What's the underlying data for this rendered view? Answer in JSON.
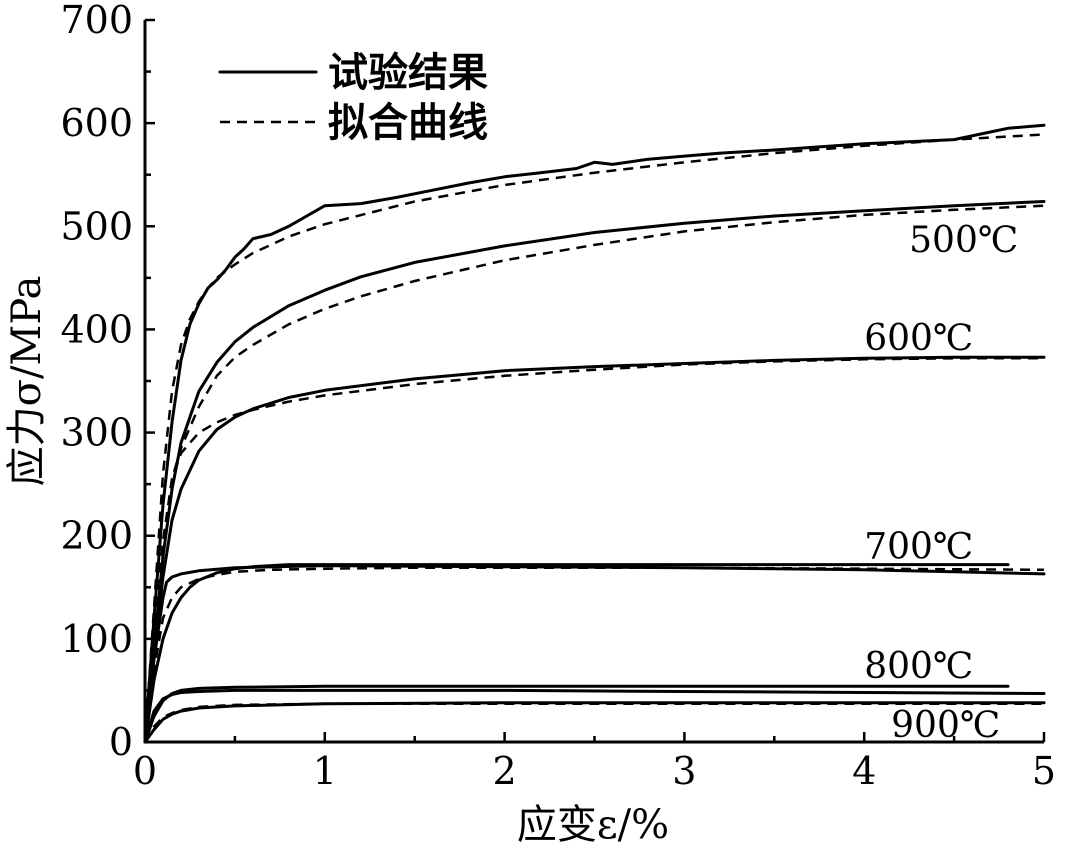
{
  "chart_data": {
    "type": "line",
    "xlabel": "应变ε/%",
    "ylabel": "应力σ/MPa",
    "xlim": [
      0,
      5
    ],
    "ylim": [
      0,
      700
    ],
    "xticks": [
      0,
      1,
      2,
      3,
      4,
      5
    ],
    "yticks": [
      0,
      100,
      200,
      300,
      400,
      500,
      600,
      700
    ],
    "grid": false,
    "legend_position": "top-left",
    "legend": [
      {
        "label": "试验结果",
        "style": "solid"
      },
      {
        "label": "拟合曲线",
        "style": "dashed"
      }
    ],
    "annotations": [
      {
        "text": "500℃",
        "x": 4.25,
        "y": 475
      },
      {
        "text": "600℃",
        "x": 4.0,
        "y": 380
      },
      {
        "text": "700℃",
        "x": 4.0,
        "y": 178
      },
      {
        "text": "800℃",
        "x": 4.0,
        "y": 62
      },
      {
        "text": "900℃",
        "x": 4.15,
        "y": 5
      }
    ],
    "series": [
      {
        "style": "solid",
        "x": [
          0,
          0.05,
          0.1,
          0.15,
          0.2,
          0.25,
          0.3,
          0.35,
          0.4,
          0.45,
          0.5,
          0.55,
          0.6,
          0.7,
          0.8,
          0.9,
          1.0,
          1.2,
          1.4,
          1.6,
          1.8,
          2.0,
          2.2,
          2.4,
          2.5,
          2.6,
          2.8,
          3.0,
          3.2,
          3.5,
          4.0,
          4.5,
          4.8,
          5.0
        ],
        "y": [
          0,
          120,
          230,
          310,
          370,
          405,
          425,
          440,
          448,
          458,
          470,
          478,
          488,
          492,
          500,
          510,
          520,
          522,
          528,
          535,
          542,
          548,
          552,
          556,
          562,
          560,
          565,
          568,
          571,
          574,
          580,
          584,
          595,
          598
        ]
      },
      {
        "style": "dashed",
        "x": [
          0,
          0.05,
          0.1,
          0.15,
          0.2,
          0.25,
          0.3,
          0.35,
          0.4,
          0.5,
          0.6,
          0.8,
          1.0,
          1.5,
          2.0,
          2.5,
          3.0,
          3.5,
          4.0,
          4.5,
          5.0
        ],
        "y": [
          0,
          130,
          260,
          340,
          385,
          410,
          427,
          440,
          450,
          463,
          474,
          490,
          502,
          524,
          540,
          552,
          562,
          571,
          578,
          584,
          589
        ]
      },
      {
        "style": "solid",
        "x": [
          0,
          0.05,
          0.1,
          0.15,
          0.2,
          0.3,
          0.4,
          0.5,
          0.6,
          0.8,
          1.0,
          1.2,
          1.5,
          2.0,
          2.5,
          3.0,
          3.5,
          4.0,
          4.5,
          5.0
        ],
        "y": [
          0,
          90,
          180,
          245,
          290,
          340,
          368,
          388,
          402,
          423,
          438,
          451,
          465,
          481,
          494,
          503,
          510,
          515,
          520,
          524
        ]
      },
      {
        "style": "dashed",
        "x": [
          0,
          0.05,
          0.1,
          0.15,
          0.2,
          0.3,
          0.4,
          0.5,
          0.6,
          0.8,
          1.0,
          1.2,
          1.5,
          2.0,
          2.5,
          3.0,
          3.5,
          4.0,
          4.5,
          5.0
        ],
        "y": [
          0,
          95,
          190,
          255,
          285,
          325,
          355,
          373,
          385,
          405,
          420,
          432,
          447,
          467,
          482,
          495,
          504,
          511,
          516,
          520
        ]
      },
      {
        "style": "solid",
        "x": [
          0,
          0.05,
          0.1,
          0.15,
          0.2,
          0.3,
          0.4,
          0.5,
          0.6,
          0.8,
          1.0,
          1.5,
          2.0,
          2.5,
          3.0,
          3.5,
          4.0,
          4.5,
          5.0
        ],
        "y": [
          0,
          85,
          160,
          215,
          245,
          282,
          303,
          315,
          323,
          334,
          341,
          352,
          360,
          364,
          367,
          370,
          372,
          373,
          373
        ]
      },
      {
        "style": "dashed",
        "x": [
          0,
          0.05,
          0.1,
          0.15,
          0.2,
          0.3,
          0.4,
          0.5,
          0.6,
          0.8,
          1.0,
          1.5,
          2.0,
          2.5,
          3.0,
          3.5,
          4.0,
          4.5,
          5.0
        ],
        "y": [
          0,
          100,
          195,
          255,
          280,
          300,
          310,
          317,
          322,
          330,
          336,
          347,
          355,
          361,
          366,
          369,
          371,
          372,
          372
        ]
      },
      {
        "style": "solid",
        "x": [
          0,
          0.05,
          0.1,
          0.15,
          0.2,
          0.25,
          0.3,
          0.4,
          0.5,
          0.6,
          0.7,
          0.8,
          1.0,
          1.5,
          2.0,
          3.0,
          4.0,
          4.5,
          4.8
        ],
        "y": [
          0,
          60,
          100,
          125,
          140,
          150,
          157,
          164,
          168,
          170,
          171,
          172,
          172,
          172,
          172,
          172,
          172,
          172,
          172
        ]
      },
      {
        "style": "solid",
        "x": [
          0,
          0.05,
          0.1,
          0.12,
          0.15,
          0.2,
          0.3,
          0.5,
          1.0,
          2.0,
          3.0,
          4.0,
          4.5,
          5.0
        ],
        "y": [
          0,
          80,
          140,
          155,
          160,
          163,
          166,
          169,
          171,
          170,
          169,
          167,
          165,
          163
        ]
      },
      {
        "style": "dashed",
        "x": [
          0,
          0.05,
          0.1,
          0.15,
          0.2,
          0.3,
          0.4,
          0.5,
          0.7,
          1.0,
          1.5,
          2.0,
          3.0,
          4.0,
          5.0
        ],
        "y": [
          0,
          70,
          120,
          140,
          150,
          158,
          162,
          165,
          167,
          168,
          169,
          169,
          169,
          168,
          167
        ]
      },
      {
        "style": "solid",
        "x": [
          0,
          0.05,
          0.1,
          0.15,
          0.2,
          0.3,
          0.5,
          1.0,
          2.0,
          3.0,
          4.0,
          4.8
        ],
        "y": [
          0,
          25,
          40,
          47,
          50,
          52,
          53,
          54,
          54,
          54,
          54,
          54
        ]
      },
      {
        "style": "solid",
        "x": [
          0,
          0.05,
          0.1,
          0.15,
          0.2,
          0.3,
          0.5,
          1.0,
          2.0,
          3.0,
          4.0,
          5.0
        ],
        "y": [
          0,
          30,
          42,
          46,
          48,
          49,
          50,
          50,
          50,
          49,
          48,
          47
        ]
      },
      {
        "style": "solid",
        "x": [
          0,
          0.05,
          0.1,
          0.15,
          0.2,
          0.3,
          0.5,
          1.0,
          2.0,
          3.0,
          4.0,
          5.0
        ],
        "y": [
          0,
          12,
          22,
          27,
          30,
          33,
          35,
          37,
          38,
          38,
          38,
          38
        ]
      },
      {
        "style": "dashed",
        "x": [
          0,
          0.05,
          0.1,
          0.15,
          0.2,
          0.3,
          0.5,
          1.0,
          2.0,
          3.0,
          4.0,
          5.0
        ],
        "y": [
          0,
          15,
          24,
          28,
          31,
          34,
          36,
          37,
          37,
          37,
          37,
          37
        ]
      }
    ]
  }
}
